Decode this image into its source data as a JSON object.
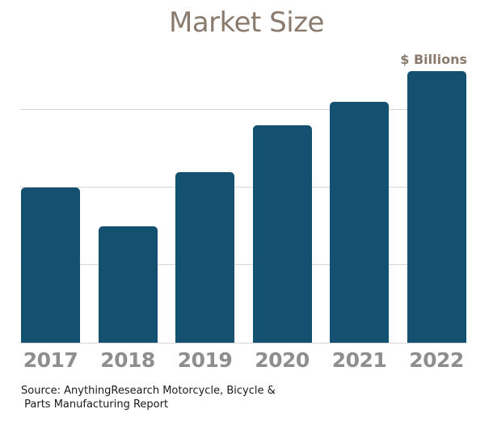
{
  "header": {
    "title": "Market Size",
    "units_label": "$ Billions"
  },
  "chart_data": {
    "type": "bar",
    "title": "Market Size",
    "categories": [
      "2017",
      "2018",
      "2019",
      "2020",
      "2021",
      "2022"
    ],
    "values": [
      2.0,
      1.5,
      2.2,
      2.8,
      3.1,
      3.5
    ],
    "xlabel": "",
    "ylabel": "$ Billions",
    "ylim": [
      0,
      4
    ],
    "gridline_units": [
      1,
      2,
      3
    ],
    "grid": "horizontal, unlabeled",
    "legend_position": "none",
    "note": "Y-axis has no tick labels; values are estimated in gridline units (1 unit = one gridline spacing)."
  },
  "footer": {
    "source_line1": "Source: AnythingResearch Motorcycle, Bicycle &",
    "source_line2": " Parts Manufacturing Report"
  },
  "colors": {
    "bar": "#14506f",
    "title_text": "#8a7b6e",
    "axis_labels": "#8e8e8e",
    "gridline": "#d5d5d5",
    "source_text": "#1a1a1a"
  }
}
